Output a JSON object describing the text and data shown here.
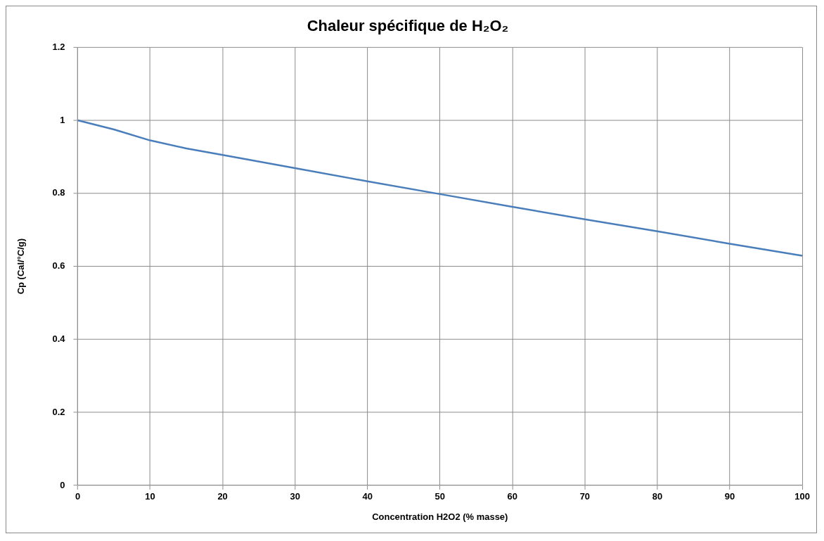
{
  "chart_data": {
    "type": "line",
    "title": "Chaleur spécifique de H₂O₂",
    "xlabel": "Concentration H2O2 (% masse)",
    "ylabel": "Cp (Cal/°C/g)",
    "x": [
      0,
      5,
      10,
      15,
      20,
      30,
      40,
      50,
      60,
      70,
      80,
      90,
      100
    ],
    "series": [
      {
        "color": "#4a7ebb",
        "values": [
          1.0,
          0.975,
          0.945,
          0.923,
          0.905,
          0.869,
          0.833,
          0.798,
          0.763,
          0.729,
          0.696,
          0.662,
          0.629
        ]
      }
    ],
    "xlim": [
      0,
      100
    ],
    "xticks": [
      0,
      10,
      20,
      30,
      40,
      50,
      60,
      70,
      80,
      90,
      100
    ],
    "ylim": [
      0,
      1.2
    ],
    "yticks": [
      0,
      0.2,
      0.4,
      0.6,
      0.8,
      1,
      1.2
    ],
    "grid": true,
    "legend": false,
    "marker": "none",
    "line_style": "solid"
  }
}
